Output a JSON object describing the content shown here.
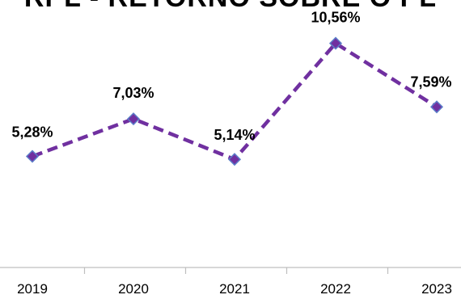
{
  "chart_data": {
    "type": "line",
    "title": "RPL - RETORNO SOBRE O PL",
    "categories": [
      "2019",
      "2020",
      "2021",
      "2022",
      "2023"
    ],
    "series": [
      {
        "values": [
          5.28,
          7.03,
          5.14,
          10.56,
          7.59
        ],
        "labels": [
          "5,28%",
          "7,03%",
          "5,14%",
          "10,56%",
          "7,59%"
        ]
      }
    ],
    "xlabel": "",
    "ylabel": "",
    "ylim": [
      0,
      12
    ],
    "grid": false,
    "line_style": "dashed",
    "marker": "diamond",
    "colors": {
      "line": "#7030A0",
      "marker_fill": "#7030A0",
      "marker_edge": "#5B7DC8"
    }
  }
}
